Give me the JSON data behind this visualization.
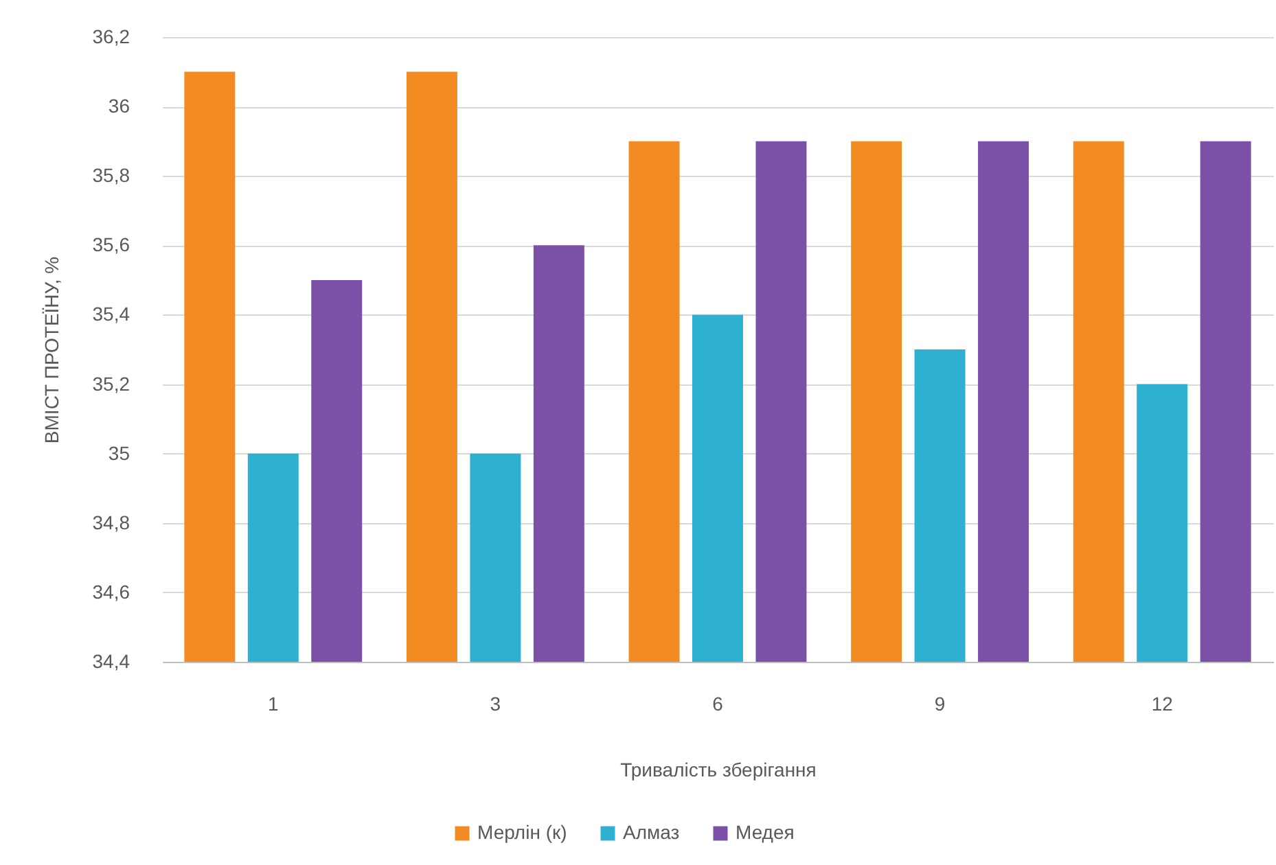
{
  "chart_data": {
    "type": "bar",
    "xlabel": "Тривалість зберігання",
    "ylabel": "ВМІСТ ПРОТЕЇНУ, %",
    "categories": [
      "1",
      "3",
      "6",
      "9",
      "12"
    ],
    "series": [
      {
        "name": "Мерлін (к)",
        "color": "#f28b22",
        "values": [
          36.1,
          36.1,
          35.9,
          35.9,
          35.9
        ]
      },
      {
        "name": "Алмаз",
        "color": "#2eb0d1",
        "values": [
          35.0,
          35.0,
          35.4,
          35.3,
          35.2
        ]
      },
      {
        "name": "Медея",
        "color": "#7b50a7",
        "values": [
          35.5,
          35.6,
          35.9,
          35.9,
          35.9
        ]
      }
    ],
    "ylim": [
      34.4,
      36.2
    ],
    "yticks": [
      {
        "value": 34.4,
        "label": "34,4"
      },
      {
        "value": 34.6,
        "label": "34,6"
      },
      {
        "value": 34.8,
        "label": "34,8"
      },
      35,
      {
        "value": 35.2,
        "label": "35,2"
      },
      {
        "value": 35.4,
        "label": "35,4"
      },
      {
        "value": 35.6,
        "label": "35,6"
      },
      {
        "value": 35.8,
        "label": "35,8"
      },
      36,
      {
        "value": 36.2,
        "label": "36,2"
      }
    ],
    "grid": "y",
    "legend": "bottom"
  }
}
